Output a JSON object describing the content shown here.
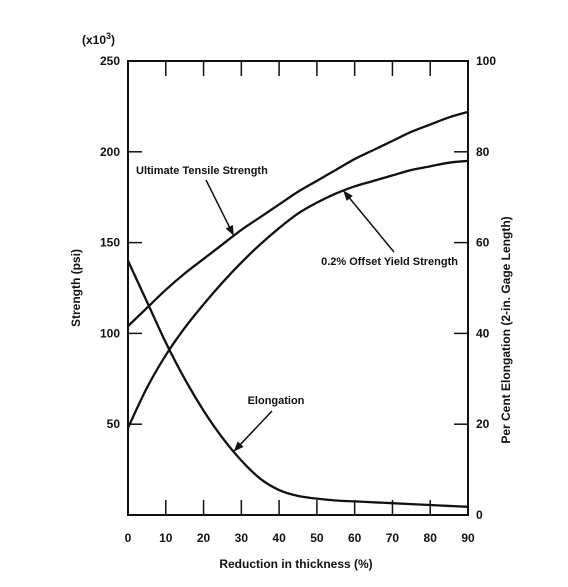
{
  "chart_data": {
    "type": "line",
    "title": "",
    "xlabel": "Reduction in thickness (%)",
    "ylabel_left": "Strength (psi)",
    "ylabel_right": "Per Cent Elongation (2-in. Gage Length)",
    "y_left_multiplier": "(x10",
    "y_left_multiplier_exp": "3",
    "y_left_multiplier_close": ")",
    "xlim": [
      0,
      90
    ],
    "ylim_left": [
      0,
      250
    ],
    "ylim_right": [
      0,
      100
    ],
    "x_ticks": [
      0,
      10,
      20,
      30,
      40,
      50,
      60,
      70,
      80,
      90
    ],
    "x_tick_labels": [
      "0",
      "10",
      "20",
      "30",
      "40",
      "50",
      "60",
      "70",
      "80",
      "90"
    ],
    "y_left_ticks": [
      50,
      100,
      150,
      200,
      250
    ],
    "y_left_tick_labels": [
      "50",
      "100",
      "150",
      "200",
      "250"
    ],
    "y_right_ticks": [
      0,
      20,
      40,
      60,
      80,
      100
    ],
    "y_right_tick_labels": [
      "0",
      "20",
      "40",
      "60",
      "80",
      "100"
    ],
    "grid": false,
    "series": [
      {
        "name": "Ultimate Tensile Strength",
        "axis": "left",
        "x": [
          0,
          5,
          10,
          15,
          20,
          25,
          30,
          35,
          40,
          45,
          50,
          55,
          60,
          65,
          70,
          75,
          80,
          85,
          90
        ],
        "y": [
          104,
          114,
          124,
          133,
          141,
          149,
          157,
          164,
          171,
          178,
          184,
          190,
          196,
          201,
          206,
          211,
          215,
          219,
          222
        ]
      },
      {
        "name": "0.2% Offset Yield Strength",
        "axis": "left",
        "x": [
          0,
          5,
          10,
          15,
          20,
          25,
          30,
          35,
          40,
          45,
          50,
          55,
          60,
          65,
          70,
          75,
          80,
          85,
          90
        ],
        "y": [
          48,
          70,
          88,
          103,
          116,
          128,
          139,
          149,
          158,
          166,
          172,
          177,
          181,
          184,
          187,
          190,
          192,
          194,
          195
        ]
      },
      {
        "name": "Elongation",
        "axis": "right",
        "x": [
          0,
          5,
          10,
          15,
          20,
          25,
          30,
          35,
          40,
          45,
          50,
          55,
          60,
          65,
          70,
          75,
          80,
          85,
          90
        ],
        "y": [
          56,
          47,
          38,
          30,
          23,
          17,
          12,
          8,
          5.5,
          4.2,
          3.6,
          3.2,
          3,
          2.8,
          2.6,
          2.4,
          2.2,
          2,
          1.8
        ]
      }
    ],
    "annotations": [
      {
        "text": "Ultimate Tensile Strength",
        "series": "Ultimate Tensile Strength"
      },
      {
        "text": "0.2% Offset Yield Strength",
        "series": "0.2% Offset Yield Strength"
      },
      {
        "text": "Elongation",
        "series": "Elongation"
      }
    ],
    "legend": "none"
  }
}
